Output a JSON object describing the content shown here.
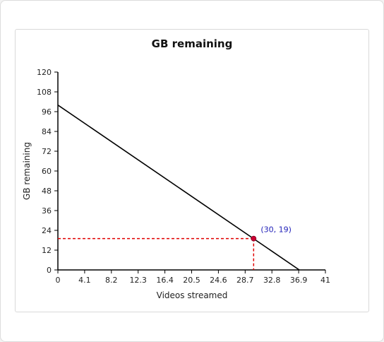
{
  "chart_data": {
    "type": "line",
    "title": "GB remaining",
    "xlabel": "Videos streamed",
    "ylabel": "GB remaining",
    "xlim": [
      0,
      41
    ],
    "ylim": [
      0,
      120
    ],
    "x_ticks": [
      "0",
      "4.1",
      "8.2",
      "12.3",
      "16.4",
      "20.5",
      "24.6",
      "28.7",
      "32.8",
      "36.9",
      "41"
    ],
    "y_ticks": [
      "0",
      "12",
      "24",
      "36",
      "48",
      "60",
      "72",
      "84",
      "96",
      "108",
      "120"
    ],
    "series": [
      {
        "x": [
          0,
          37
        ],
        "y": [
          100,
          0
        ]
      }
    ],
    "highlight_point": {
      "x": 30,
      "y": 19,
      "label": "(30, 19)"
    },
    "colors": {
      "line": "#000000",
      "guide": "#e00000",
      "point": "#cc0033",
      "annotation": "#1f1fb8"
    },
    "grid": false,
    "legend": "none"
  }
}
